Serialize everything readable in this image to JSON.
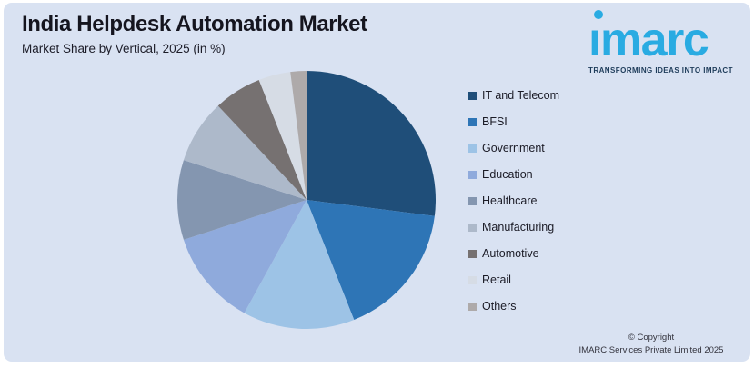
{
  "header": {
    "title": "India Helpdesk Automation Market",
    "subtitle": "Market Share by Vertical, 2025 (in %)"
  },
  "logo": {
    "brand": "ımarc",
    "brand_plain": "imarc",
    "tagline": "TRANSFORMING IDEAS INTO IMPACT",
    "brand_color": "#29ABE2",
    "tagline_color": "#1E3C5A"
  },
  "chart_data": {
    "type": "pie",
    "title": "India Helpdesk Automation Market",
    "subtitle": "Market Share by Vertical, 2025 (in %)",
    "unit": "%",
    "categories": [
      "IT and Telecom",
      "BFSI",
      "Government",
      "Education",
      "Healthcare",
      "Manufacturing",
      "Automotive",
      "Retail",
      "Others"
    ],
    "values": [
      27,
      17,
      14,
      12,
      10,
      8,
      6,
      4,
      2
    ],
    "colors": [
      "#1F4E79",
      "#2E75B6",
      "#9DC3E6",
      "#8FAADC",
      "#8496B0",
      "#ADB9CA",
      "#767171",
      "#D6DCE5",
      "#AEAAAA"
    ],
    "start_angle_deg": 0,
    "direction": "clockwise",
    "legend_position": "right",
    "data_labels": "none"
  },
  "footer": {
    "copyright_line1": "© Copyright",
    "copyright_line2": "IMARC Services Private Limited 2025"
  },
  "page": {
    "background": "#D9E2F2",
    "outer_background": "#FFFFFF"
  }
}
